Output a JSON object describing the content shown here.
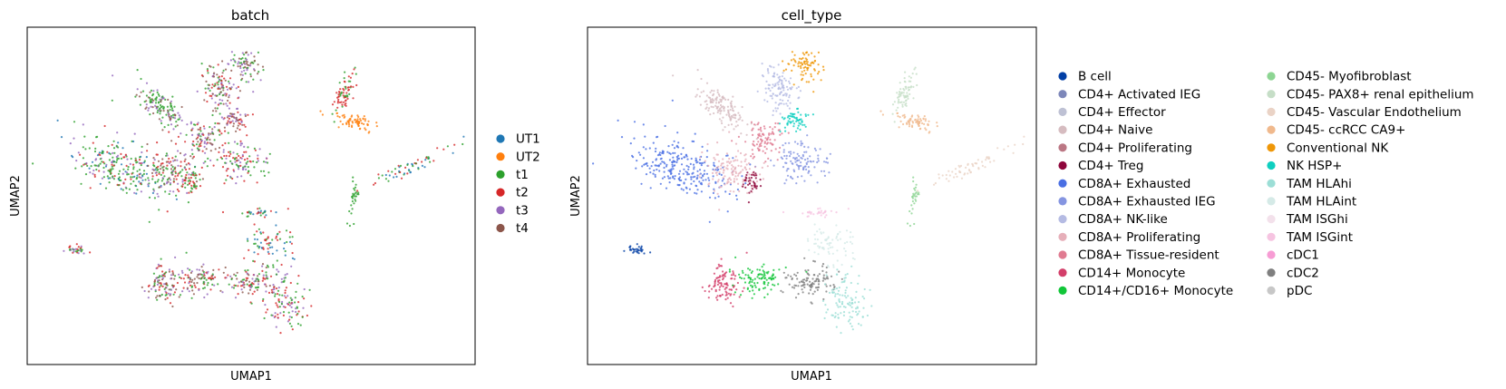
{
  "chart_data": [
    {
      "type": "scatter",
      "title": "batch",
      "xlabel": "UMAP1",
      "ylabel": "UMAP2",
      "grid": false,
      "ticks": false,
      "legend_position": "right",
      "series": [
        {
          "name": "UT1",
          "color": "#1f77b4"
        },
        {
          "name": "UT2",
          "color": "#ff7f0e"
        },
        {
          "name": "t1",
          "color": "#2ca02c"
        },
        {
          "name": "t2",
          "color": "#d62728"
        },
        {
          "name": "t3",
          "color": "#9467bd"
        },
        {
          "name": "t4",
          "color": "#8c564b"
        }
      ]
    },
    {
      "type": "scatter",
      "title": "cell_type",
      "xlabel": "UMAP1",
      "ylabel": "UMAP2",
      "grid": false,
      "ticks": false,
      "legend_position": "right",
      "series": [
        {
          "name": "B cell",
          "color": "#023fa5"
        },
        {
          "name": "CD4+ Activated IEG",
          "color": "#7d87b9"
        },
        {
          "name": "CD4+ Effector",
          "color": "#bec1d4"
        },
        {
          "name": "CD4+ Naive",
          "color": "#d6bcc0"
        },
        {
          "name": "CD4+ Proliferating",
          "color": "#bb7784"
        },
        {
          "name": "CD4+ Treg",
          "color": "#8e063b"
        },
        {
          "name": "CD8A+ Exhausted",
          "color": "#4a6fe3"
        },
        {
          "name": "CD8A+ Exhausted IEG",
          "color": "#8595e1"
        },
        {
          "name": "CD8A+ NK-like",
          "color": "#b5bbe3"
        },
        {
          "name": "CD8A+ Proliferating",
          "color": "#e6afb9"
        },
        {
          "name": "CD8A+ Tissue-resident",
          "color": "#e07b91"
        },
        {
          "name": "CD14+ Monocyte",
          "color": "#d33f6a"
        },
        {
          "name": "CD14+/CD16+ Monocyte",
          "color": "#11c638"
        },
        {
          "name": "CD45- Myofibroblast",
          "color": "#8dd593"
        },
        {
          "name": "CD45- PAX8+ renal epithelium",
          "color": "#c6dec7"
        },
        {
          "name": "CD45- Vascular Endothelium",
          "color": "#ead3c6"
        },
        {
          "name": "CD45- ccRCC CA9+",
          "color": "#f0b98d"
        },
        {
          "name": "Conventional NK",
          "color": "#ef9708"
        },
        {
          "name": "NK HSP+",
          "color": "#0fcfc0"
        },
        {
          "name": "TAM HLAhi",
          "color": "#9cded6"
        },
        {
          "name": "TAM HLAint",
          "color": "#d5eae7"
        },
        {
          "name": "TAM ISGhi",
          "color": "#f3e1eb"
        },
        {
          "name": "TAM ISGint",
          "color": "#f6c4e1"
        },
        {
          "name": "cDC1",
          "color": "#f79cd4"
        },
        {
          "name": "cDC2",
          "color": "#7f7f7f"
        },
        {
          "name": "pDC",
          "color": "#c7c7c7"
        }
      ]
    }
  ]
}
